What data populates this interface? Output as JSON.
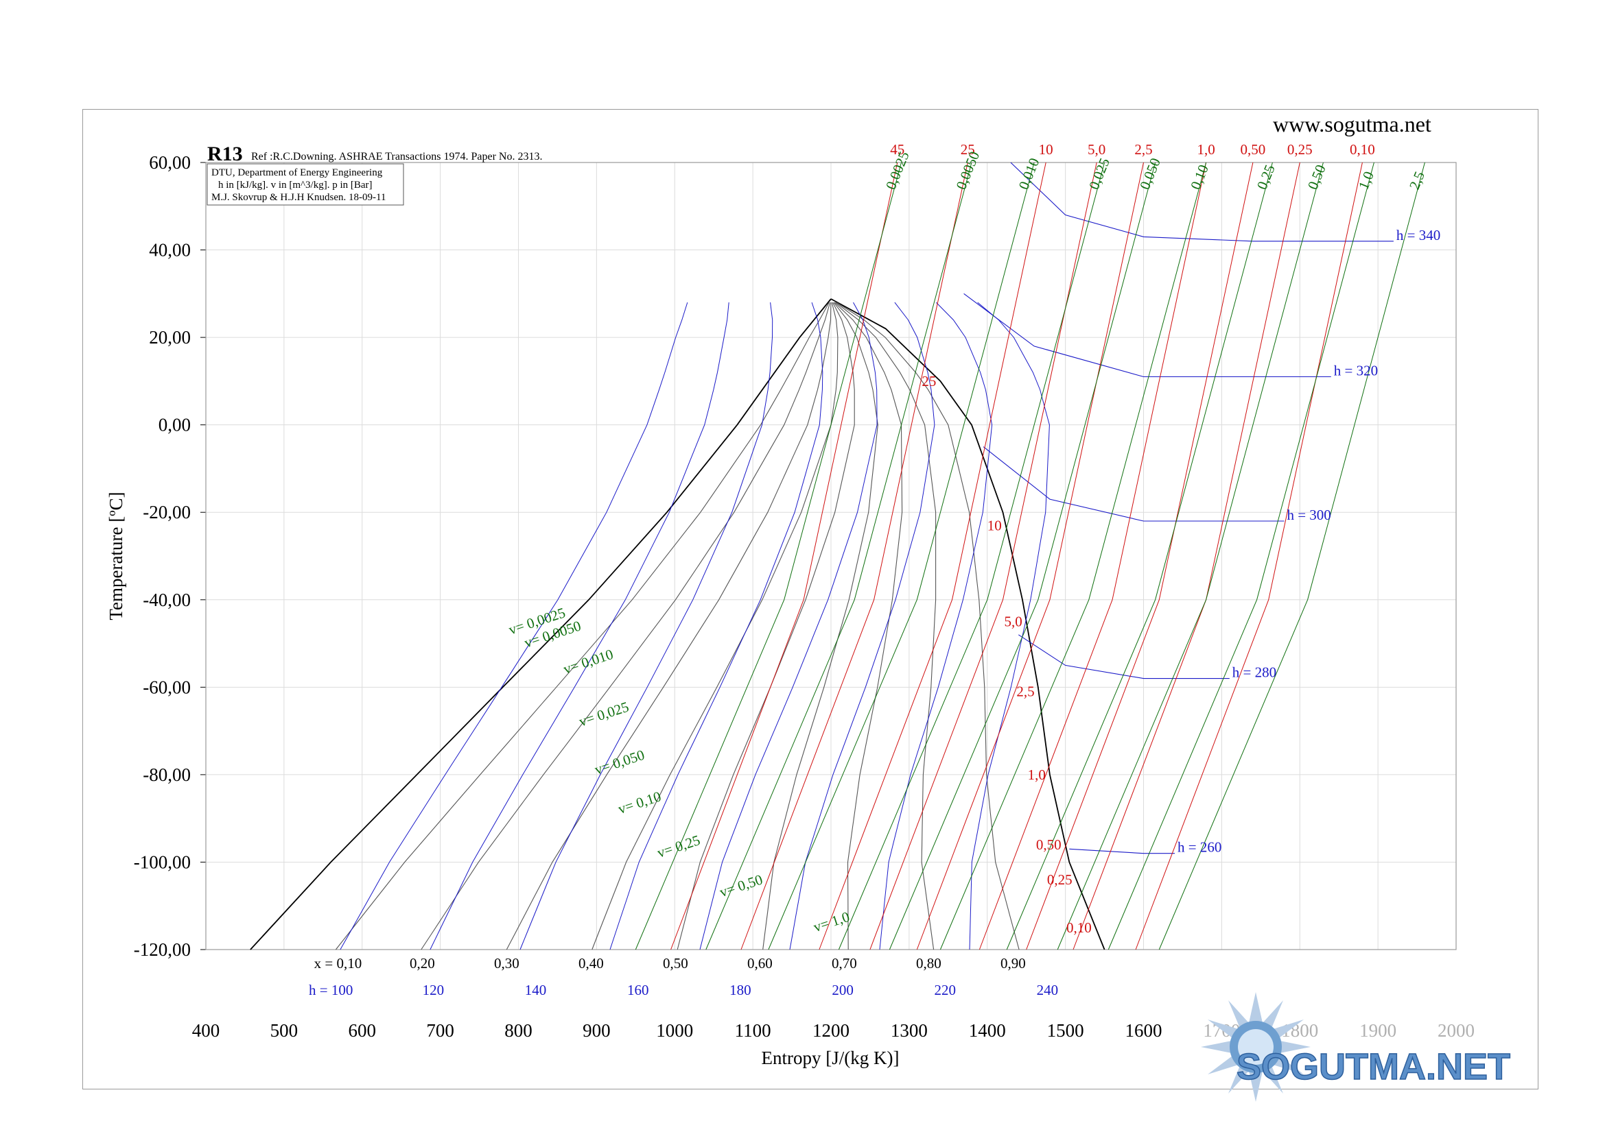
{
  "header": {
    "website": "www.sogutma.net"
  },
  "chart_data": {
    "type": "line",
    "title": "R13",
    "subtitle": "Ref :R.C.Downing. ASHRAE Transactions 1974. Paper No. 2313.",
    "info_box": [
      "DTU, Department of Energy Engineering",
      "h in [kJ/kg]. v in [m^3/kg]. p in [Bar]",
      "M.J. Skovrup & H.J.H Knudsen. 18-09-11"
    ],
    "xlabel": "Entropy [J/(kg K)]",
    "ylabel": "Temperature [ºC]",
    "xlim": [
      400,
      2000
    ],
    "ylim": [
      -120,
      60
    ],
    "x_ticks": [
      400,
      500,
      600,
      700,
      800,
      900,
      1000,
      1100,
      1200,
      1300,
      1400,
      1500,
      1600,
      1700,
      1800,
      1900,
      2000
    ],
    "y_ticks": [
      "60,00",
      "40,00",
      "20,00",
      "0,00",
      "-20,00",
      "-40,00",
      "-60,00",
      "-80,00",
      "-100,00",
      "-120,00"
    ],
    "grid": true,
    "saturation_dome": {
      "liquid": [
        [
          457,
          -120
        ],
        [
          560,
          -100
        ],
        [
          670,
          -80
        ],
        [
          780,
          -60
        ],
        [
          890,
          -40
        ],
        [
          990,
          -20
        ],
        [
          1080,
          0
        ],
        [
          1160,
          20
        ],
        [
          1200,
          28.8
        ]
      ],
      "vapor": [
        [
          1200,
          28.8
        ],
        [
          1270,
          22
        ],
        [
          1340,
          10
        ],
        [
          1380,
          0
        ],
        [
          1420,
          -20
        ],
        [
          1445,
          -40
        ],
        [
          1465,
          -60
        ],
        [
          1480,
          -80
        ],
        [
          1505,
          -100
        ],
        [
          1550,
          -120
        ]
      ]
    },
    "quality_labels": [
      "x = 0,10",
      "0,20",
      "0,30",
      "0,40",
      "0,50",
      "0,60",
      "0,70",
      "0,80",
      "0,90"
    ],
    "enthalpy_bottom_labels": [
      "h = 100",
      "120",
      "140",
      "160",
      "180",
      "200",
      "220",
      "240"
    ],
    "enthalpy_series": [
      {
        "name": "h = 260",
        "points": [
          [
            1505,
            -97
          ],
          [
            1600,
            -98
          ],
          [
            1640,
            -98
          ]
        ]
      },
      {
        "name": "h = 280",
        "points": [
          [
            1440,
            -48
          ],
          [
            1500,
            -55
          ],
          [
            1600,
            -58
          ],
          [
            1710,
            -58
          ]
        ]
      },
      {
        "name": "h = 300",
        "points": [
          [
            1395,
            -5
          ],
          [
            1480,
            -17
          ],
          [
            1600,
            -22
          ],
          [
            1780,
            -22
          ]
        ]
      },
      {
        "name": "h = 320",
        "points": [
          [
            1370,
            30
          ],
          [
            1460,
            18
          ],
          [
            1600,
            11
          ],
          [
            1840,
            11
          ]
        ]
      },
      {
        "name": "h = 340",
        "points": [
          [
            1430,
            60
          ],
          [
            1500,
            48
          ],
          [
            1600,
            43
          ],
          [
            1740,
            42
          ],
          [
            1920,
            42
          ]
        ]
      }
    ],
    "pressure_labels_top": [
      "45",
      "25",
      "10",
      "5,0",
      "2,5",
      "1,0",
      "0,50",
      "0,25",
      "0,10"
    ],
    "pressure_labels_dome": [
      "25",
      "10",
      "5,0",
      "2,5",
      "1,0",
      "0,50",
      "0,25",
      "0,10"
    ],
    "volume_labels_top": [
      "0,0025",
      "0,0050",
      "0,010",
      "0,025",
      "0,050",
      "0,10",
      "0,25",
      "0,50",
      "1,0",
      "2,5"
    ],
    "volume_labels_inside": [
      "v= 0,0025",
      "v= 0,0050",
      "v= 0,010",
      "v= 0,025",
      "v= 0,050",
      "v= 0,10",
      "v= 0,25",
      "v= 0,50",
      "v= 1,0"
    ]
  },
  "colors": {
    "enthalpy": "#1a1ac8",
    "pressure": "#d01010",
    "volume": "#107010",
    "dome": "#000000",
    "quality": "#555555"
  },
  "logo": {
    "text": "SOGUTMA.NET"
  }
}
